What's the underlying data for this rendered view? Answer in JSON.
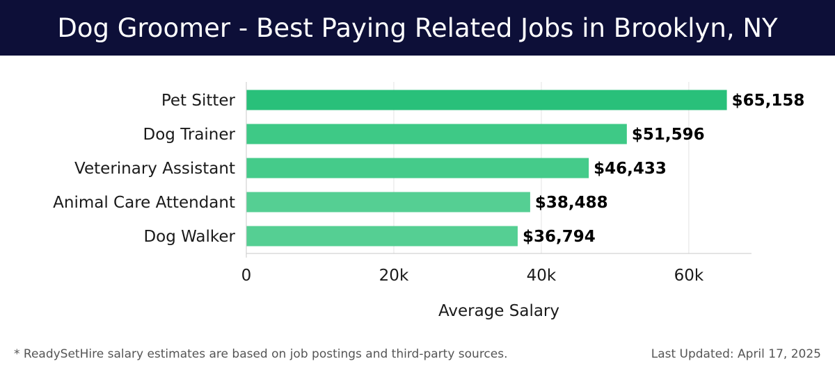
{
  "header": {
    "title": "Dog Groomer - Best Paying Related Jobs in Brooklyn, NY",
    "background_color": "#0d0f38"
  },
  "chart_data": {
    "type": "bar",
    "orientation": "horizontal",
    "categories": [
      "Pet Sitter",
      "Dog Trainer",
      "Veterinary Assistant",
      "Animal Care Attendant",
      "Dog Walker"
    ],
    "values": [
      65158,
      51596,
      46433,
      38488,
      36794
    ],
    "value_labels": [
      "$65,158",
      "$51,596",
      "$46,433",
      "$38,488",
      "$36,794"
    ],
    "bar_colors": [
      "#29c07a",
      "#3ec986",
      "#45cb8a",
      "#55cf93",
      "#55cf93"
    ],
    "xlabel": "Average Salary",
    "ylabel": "",
    "xlim": [
      0,
      68500
    ],
    "xticks": [
      0,
      20000,
      40000,
      60000
    ],
    "xtick_labels": [
      "0",
      "20k",
      "40k",
      "60k"
    ],
    "grid": true
  },
  "footer": {
    "note": "* ReadySetHire salary estimates are based on job postings and third-party sources.",
    "updated": "Last Updated: April 17, 2025"
  }
}
